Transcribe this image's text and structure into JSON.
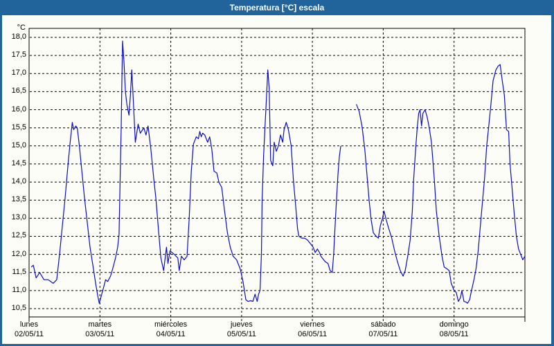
{
  "window": {
    "title": "Temperatura [°C] escala"
  },
  "colors": {
    "titlebar_and_border": "#20649b",
    "content_background": "#fcfdf6",
    "line": "#0a0ac8",
    "grid": "#000000",
    "text": "#000000"
  },
  "chart_data": {
    "type": "line",
    "title": "Temperatura [°C] escala",
    "ylabel": "°C",
    "xlabel": "",
    "grid": "dashed-on",
    "legend": "none",
    "ylim": [
      10.27,
      18.25
    ],
    "xlim_days": [
      0,
      7
    ],
    "y_ticks": [
      18.0,
      17.5,
      17.0,
      16.5,
      16.0,
      15.5,
      15.0,
      14.5,
      14.0,
      13.5,
      13.0,
      12.5,
      12.0,
      11.5,
      11.0,
      10.5
    ],
    "y_tick_labels": [
      "18,0",
      "17,5",
      "17,0",
      "16,5",
      "16,0",
      "15,5",
      "15,0",
      "14,5",
      "14,0",
      "13,5",
      "13,0",
      "12,5",
      "12,0",
      "11,5",
      "11,0",
      "10,5"
    ],
    "x_categories": [
      {
        "day": "lunes",
        "date": "02/05/11"
      },
      {
        "day": "martes",
        "date": "03/05/11"
      },
      {
        "day": "miércoles",
        "date": "04/05/11"
      },
      {
        "day": "jueves",
        "date": "05/05/11"
      },
      {
        "day": "viernes",
        "date": "06/05/11"
      },
      {
        "day": "sábado",
        "date": "07/05/11"
      },
      {
        "day": "domingo",
        "date": "08/05/11"
      }
    ],
    "series": [
      {
        "name": "Temperatura",
        "note": "x = days since lunes 02/05/11 00:00, y = °C; gap in data Friday midday",
        "segments": [
          [
            [
              0.03,
              11.65
            ],
            [
              0.06,
              11.7
            ],
            [
              0.1,
              11.35
            ],
            [
              0.15,
              11.5
            ],
            [
              0.21,
              11.3
            ],
            [
              0.27,
              11.3
            ],
            [
              0.34,
              11.2
            ],
            [
              0.39,
              11.3
            ],
            [
              0.43,
              12.0
            ],
            [
              0.47,
              12.8
            ],
            [
              0.51,
              13.6
            ],
            [
              0.55,
              14.5
            ],
            [
              0.58,
              15.1
            ],
            [
              0.61,
              15.65
            ],
            [
              0.63,
              15.45
            ],
            [
              0.66,
              15.55
            ],
            [
              0.68,
              15.5
            ],
            [
              0.71,
              15.0
            ],
            [
              0.74,
              14.4
            ],
            [
              0.78,
              13.6
            ],
            [
              0.82,
              12.9
            ],
            [
              0.86,
              12.2
            ],
            [
              0.9,
              11.7
            ],
            [
              0.94,
              11.2
            ],
            [
              0.97,
              10.85
            ],
            [
              0.99,
              10.65
            ],
            [
              1.04,
              11.0
            ],
            [
              1.08,
              11.3
            ],
            [
              1.11,
              11.25
            ],
            [
              1.15,
              11.4
            ],
            [
              1.18,
              11.6
            ],
            [
              1.22,
              11.9
            ],
            [
              1.25,
              12.2
            ],
            [
              1.27,
              12.55
            ],
            [
              1.29,
              14.5
            ],
            [
              1.3,
              15.5
            ],
            [
              1.31,
              16.8
            ],
            [
              1.32,
              17.9
            ],
            [
              1.34,
              17.3
            ],
            [
              1.36,
              16.5
            ],
            [
              1.38,
              16.15
            ],
            [
              1.41,
              15.85
            ],
            [
              1.43,
              16.4
            ],
            [
              1.45,
              17.1
            ],
            [
              1.47,
              16.3
            ],
            [
              1.5,
              15.1
            ],
            [
              1.54,
              15.6
            ],
            [
              1.57,
              15.35
            ],
            [
              1.62,
              15.5
            ],
            [
              1.65,
              15.3
            ],
            [
              1.68,
              15.55
            ],
            [
              1.72,
              14.9
            ],
            [
              1.76,
              14.1
            ],
            [
              1.79,
              13.55
            ],
            [
              1.83,
              12.6
            ],
            [
              1.86,
              11.9
            ],
            [
              1.9,
              11.55
            ],
            [
              1.94,
              12.2
            ],
            [
              1.96,
              11.75
            ],
            [
              1.99,
              12.1
            ],
            [
              2.05,
              12.0
            ],
            [
              2.1,
              11.9
            ],
            [
              2.12,
              11.55
            ],
            [
              2.15,
              11.95
            ],
            [
              2.19,
              11.85
            ],
            [
              2.23,
              11.95
            ],
            [
              2.26,
              13.0
            ],
            [
              2.29,
              14.3
            ],
            [
              2.32,
              15.05
            ],
            [
              2.36,
              15.25
            ],
            [
              2.39,
              15.2
            ],
            [
              2.41,
              15.4
            ],
            [
              2.43,
              15.25
            ],
            [
              2.45,
              15.35
            ],
            [
              2.48,
              15.3
            ],
            [
              2.52,
              15.1
            ],
            [
              2.55,
              15.25
            ],
            [
              2.58,
              14.9
            ],
            [
              2.61,
              14.3
            ],
            [
              2.65,
              14.25
            ],
            [
              2.68,
              14.0
            ],
            [
              2.72,
              13.85
            ],
            [
              2.76,
              13.2
            ],
            [
              2.8,
              12.6
            ],
            [
              2.84,
              12.2
            ],
            [
              2.88,
              11.95
            ],
            [
              2.93,
              11.85
            ],
            [
              2.98,
              11.6
            ],
            [
              3.02,
              11.25
            ],
            [
              3.06,
              10.75
            ],
            [
              3.09,
              10.7
            ],
            [
              3.13,
              10.72
            ],
            [
              3.16,
              10.7
            ],
            [
              3.19,
              10.9
            ],
            [
              3.22,
              10.7
            ],
            [
              3.24,
              10.9
            ],
            [
              3.26,
              11.0
            ],
            [
              3.28,
              12.0
            ],
            [
              3.29,
              13.5
            ],
            [
              3.31,
              14.7
            ],
            [
              3.33,
              15.5
            ],
            [
              3.35,
              16.3
            ],
            [
              3.37,
              17.1
            ],
            [
              3.39,
              16.6
            ],
            [
              3.41,
              14.6
            ],
            [
              3.44,
              14.45
            ],
            [
              3.46,
              15.1
            ],
            [
              3.49,
              14.85
            ],
            [
              3.52,
              15.0
            ],
            [
              3.55,
              15.3
            ],
            [
              3.58,
              15.1
            ],
            [
              3.6,
              15.45
            ],
            [
              3.63,
              15.65
            ],
            [
              3.66,
              15.45
            ],
            [
              3.7,
              15.0
            ],
            [
              3.73,
              14.1
            ],
            [
              3.77,
              13.2
            ],
            [
              3.79,
              12.7
            ],
            [
              3.81,
              12.5
            ],
            [
              3.85,
              12.45
            ],
            [
              3.89,
              12.45
            ],
            [
              3.93,
              12.4
            ],
            [
              3.97,
              12.3
            ],
            [
              4.01,
              12.2
            ],
            [
              4.04,
              12.05
            ],
            [
              4.07,
              12.15
            ],
            [
              4.1,
              12.05
            ],
            [
              4.12,
              11.95
            ],
            [
              4.16,
              11.85
            ],
            [
              4.18,
              11.8
            ],
            [
              4.22,
              11.75
            ],
            [
              4.25,
              11.55
            ],
            [
              4.28,
              11.5
            ],
            [
              4.3,
              12.0
            ],
            [
              4.32,
              12.8
            ],
            [
              4.34,
              13.5
            ],
            [
              4.36,
              14.2
            ],
            [
              4.38,
              14.7
            ],
            [
              4.4,
              15.0
            ]
          ],
          [
            [
              4.62,
              16.15
            ],
            [
              4.66,
              15.95
            ],
            [
              4.7,
              15.55
            ],
            [
              4.74,
              14.9
            ],
            [
              4.77,
              14.2
            ],
            [
              4.8,
              13.5
            ],
            [
              4.83,
              12.95
            ],
            [
              4.86,
              12.6
            ],
            [
              4.9,
              12.5
            ],
            [
              4.93,
              12.45
            ],
            [
              4.96,
              12.8
            ],
            [
              4.99,
              13.0
            ],
            [
              5.01,
              13.2
            ],
            [
              5.05,
              12.9
            ],
            [
              5.08,
              12.7
            ],
            [
              5.12,
              12.45
            ],
            [
              5.16,
              12.1
            ],
            [
              5.2,
              11.8
            ],
            [
              5.24,
              11.55
            ],
            [
              5.28,
              11.4
            ],
            [
              5.31,
              11.55
            ],
            [
              5.35,
              12.0
            ],
            [
              5.38,
              12.4
            ],
            [
              5.41,
              13.2
            ],
            [
              5.43,
              14.1
            ],
            [
              5.46,
              15.0
            ],
            [
              5.48,
              15.5
            ],
            [
              5.5,
              15.9
            ],
            [
              5.52,
              16.0
            ],
            [
              5.54,
              15.55
            ],
            [
              5.56,
              15.9
            ],
            [
              5.59,
              16.0
            ],
            [
              5.62,
              15.8
            ],
            [
              5.65,
              15.5
            ],
            [
              5.68,
              15.1
            ],
            [
              5.72,
              14.1
            ],
            [
              5.75,
              13.2
            ],
            [
              5.79,
              12.5
            ],
            [
              5.83,
              11.95
            ],
            [
              5.86,
              11.65
            ],
            [
              5.9,
              11.6
            ],
            [
              5.93,
              11.55
            ],
            [
              5.96,
              11.2
            ],
            [
              6.0,
              11.0
            ],
            [
              6.03,
              10.95
            ],
            [
              6.06,
              10.7
            ],
            [
              6.09,
              10.8
            ],
            [
              6.11,
              11.0
            ],
            [
              6.14,
              10.7
            ],
            [
              6.17,
              10.68
            ],
            [
              6.19,
              10.65
            ],
            [
              6.22,
              10.75
            ],
            [
              6.24,
              10.95
            ],
            [
              6.28,
              11.3
            ],
            [
              6.31,
              11.6
            ],
            [
              6.34,
              12.1
            ],
            [
              6.38,
              13.0
            ],
            [
              6.43,
              14.1
            ],
            [
              6.46,
              15.0
            ],
            [
              6.49,
              15.55
            ],
            [
              6.52,
              16.15
            ],
            [
              6.55,
              16.8
            ],
            [
              6.59,
              17.1
            ],
            [
              6.62,
              17.2
            ],
            [
              6.65,
              17.25
            ],
            [
              6.68,
              16.8
            ],
            [
              6.71,
              16.4
            ],
            [
              6.74,
              15.45
            ],
            [
              6.77,
              15.4
            ],
            [
              6.79,
              14.5
            ],
            [
              6.82,
              13.8
            ],
            [
              6.85,
              13.1
            ],
            [
              6.88,
              12.5
            ],
            [
              6.91,
              12.15
            ],
            [
              6.94,
              12.0
            ],
            [
              6.97,
              11.85
            ],
            [
              7.0,
              11.95
            ]
          ]
        ]
      }
    ]
  }
}
